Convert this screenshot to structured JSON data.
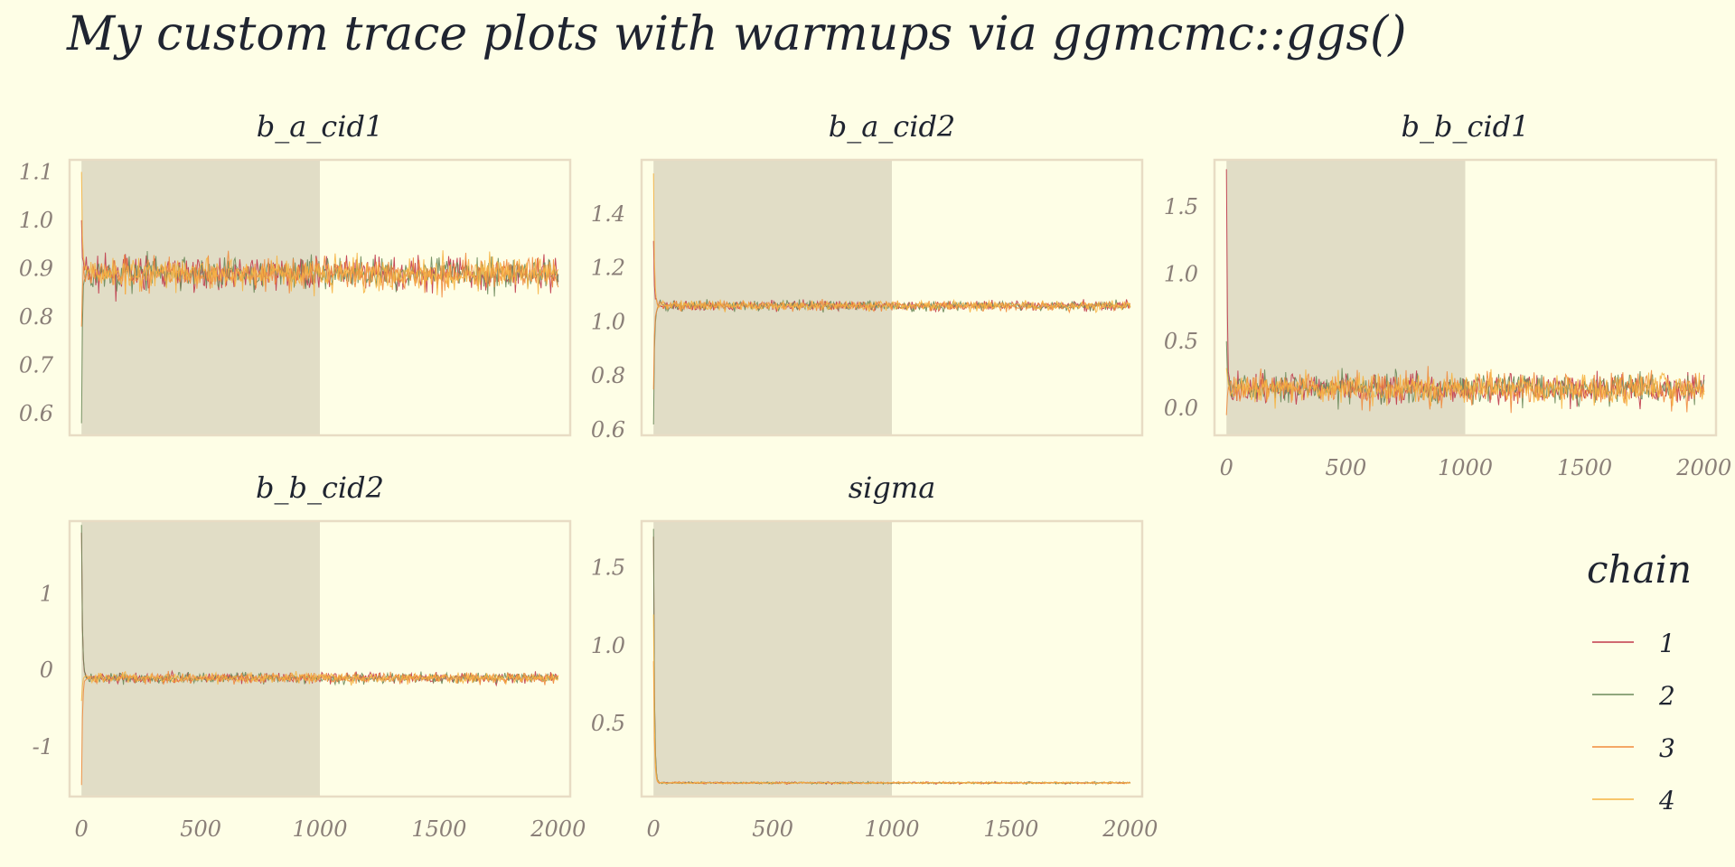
{
  "title": "My custom trace plots with warmups via ggmcmc::ggs()",
  "colors": {
    "background": "#fefee6",
    "panel_border": "#e8dcc4",
    "warmup_shade": "#e1ddc6",
    "tick_text": "#8a7f78",
    "title_text": "#1f2430"
  },
  "chart_data": {
    "type": "line",
    "facets_wrap": 3,
    "warmup": 1000,
    "iterations": 2000,
    "x_ticks": [
      0,
      500,
      1000,
      1500,
      2000
    ],
    "x_ticks_labels": [
      "0",
      "500",
      "1000",
      "1500",
      "2000"
    ],
    "legend": {
      "title": "chain",
      "placement": "right",
      "entries": [
        {
          "label": "1",
          "color": "#c0384a"
        },
        {
          "label": "2",
          "color": "#6b8a5a"
        },
        {
          "label": "3",
          "color": "#f08a3c"
        },
        {
          "label": "4",
          "color": "#f6b442"
        }
      ]
    },
    "panels": [
      {
        "name": "b_a_cid1",
        "ylim": [
          0.555,
          1.125
        ],
        "y_ticks": [
          0.6,
          0.7,
          0.8,
          0.9,
          1.0,
          1.1
        ],
        "y_ticks_labels": [
          "0.6",
          "0.7",
          "0.8",
          "0.9",
          "1.0",
          "1.1"
        ],
        "center": 0.89,
        "spread": 0.022,
        "inits": [
          1.0,
          0.58,
          0.78,
          1.1
        ],
        "show_x": false
      },
      {
        "name": "b_a_cid2",
        "ylim": [
          0.58,
          1.6
        ],
        "y_ticks": [
          0.6,
          0.8,
          1.0,
          1.2,
          1.4
        ],
        "y_ticks_labels": [
          "0.6",
          "0.8",
          "1.0",
          "1.2",
          "1.4"
        ],
        "center": 1.06,
        "spread": 0.012,
        "inits": [
          1.3,
          0.62,
          0.75,
          1.55
        ],
        "show_x": false
      },
      {
        "name": "b_b_cid1",
        "ylim": [
          -0.2,
          1.85
        ],
        "y_ticks": [
          0.0,
          0.5,
          1.0,
          1.5
        ],
        "y_ticks_labels": [
          "0.0",
          "0.5",
          "1.0",
          "1.5"
        ],
        "center": 0.15,
        "spread": 0.075,
        "inits": [
          1.78,
          0.5,
          -0.05,
          0.3
        ],
        "show_x": true
      },
      {
        "name": "b_b_cid2",
        "ylim": [
          -1.65,
          1.95
        ],
        "y_ticks": [
          -1,
          0,
          1
        ],
        "y_ticks_labels": [
          "-1",
          "0",
          "1"
        ],
        "center": -0.1,
        "spread": 0.045,
        "inits": [
          1.8,
          1.9,
          -1.5,
          -0.4
        ],
        "show_x": true
      },
      {
        "name": "sigma",
        "ylim": [
          0.03,
          1.8
        ],
        "y_ticks": [
          0.5,
          1.0,
          1.5
        ],
        "y_ticks_labels": [
          "0.5",
          "1.0",
          "1.5"
        ],
        "center": 0.118,
        "spread": 0.004,
        "inits": [
          1.7,
          1.75,
          0.9,
          1.2
        ],
        "show_x": true
      }
    ]
  }
}
